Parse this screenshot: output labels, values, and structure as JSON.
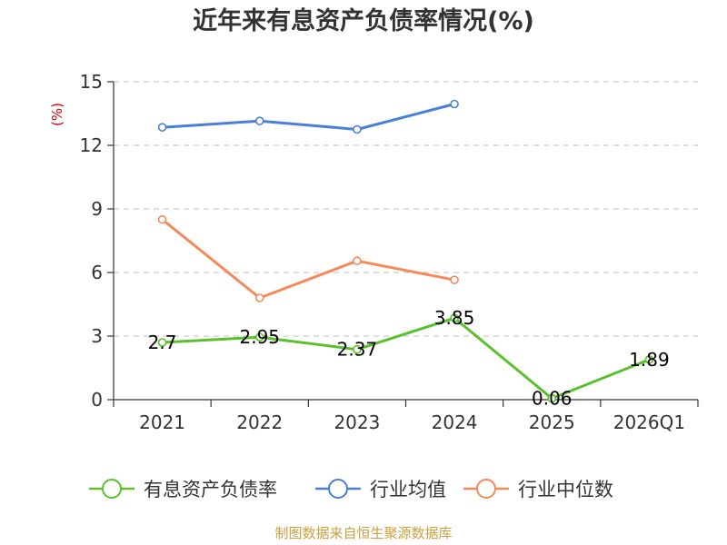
{
  "chart_data": {
    "type": "line",
    "title": "近年来有息资产负债率情况(%)",
    "ylabel": "(%)",
    "categories": [
      "2021",
      "2022",
      "2023",
      "2024",
      "2025",
      "2026Q1"
    ],
    "yticks": [
      "0",
      "3",
      "6",
      "9",
      "12",
      "15"
    ],
    "ylim": [
      0,
      15
    ],
    "grid": true,
    "legend": "bottom",
    "series": [
      {
        "name": "有息资产负债率",
        "color": "#5ac12b",
        "values": [
          2.7,
          2.95,
          2.37,
          3.85,
          0.06,
          1.89
        ],
        "labels": [
          "2.7",
          "2.95",
          "2.37",
          "3.85",
          "0.06",
          "1.89"
        ]
      },
      {
        "name": "行业均值",
        "color": "#4a7fd8",
        "values": [
          12.85,
          13.15,
          12.75,
          13.95,
          null,
          null
        ]
      },
      {
        "name": "行业中位数",
        "color": "#f5895a",
        "values": [
          8.5,
          4.8,
          6.55,
          5.65,
          null,
          null
        ]
      }
    ],
    "source": "制图数据来自恒生聚源数据库"
  }
}
